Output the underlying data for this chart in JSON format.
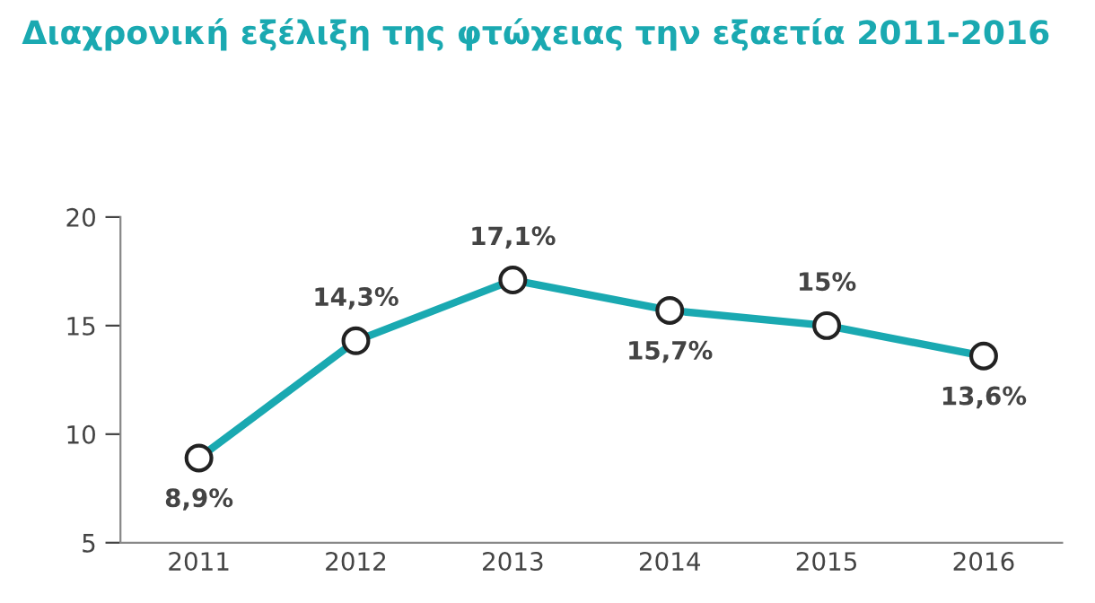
{
  "chart_data": {
    "type": "line",
    "title": "Διαχρονική εξέλιξη της φτώχειας την εξαετία 2011-2016",
    "categories": [
      "2011",
      "2012",
      "2013",
      "2014",
      "2015",
      "2016"
    ],
    "series": [
      {
        "color": "#1aa9b1",
        "values": [
          8.9,
          14.3,
          17.1,
          15.7,
          15,
          13.6
        ],
        "value_labels": [
          "8,9%",
          "14,3%",
          "17,1%",
          "15,7%",
          "15%",
          "13,6%"
        ]
      }
    ],
    "ylim": [
      5,
      20
    ],
    "yticks": [
      5,
      10,
      15,
      20
    ],
    "grid": false,
    "marker": "circle",
    "line_style": "solid"
  }
}
